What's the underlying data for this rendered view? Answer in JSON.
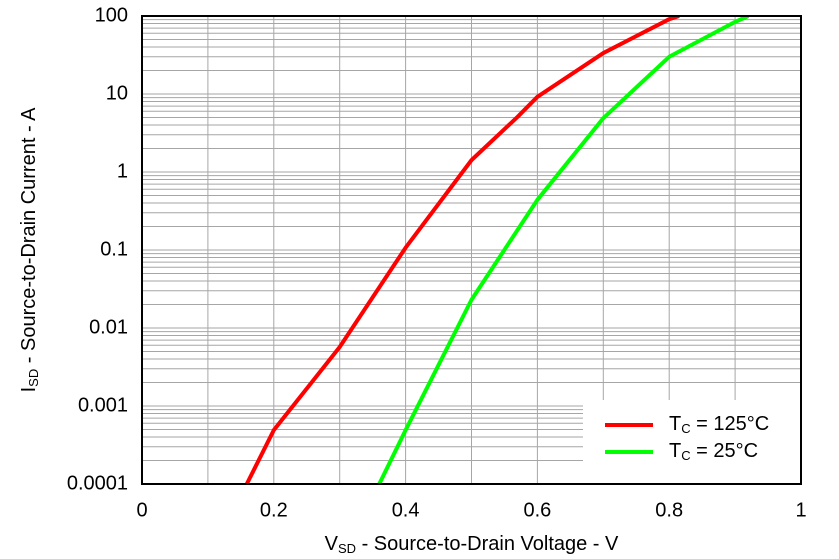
{
  "chart_data": {
    "type": "line",
    "x_label": {
      "text": "V",
      "sub": "SD",
      "rest": " - Source-to-Drain Voltage - V"
    },
    "y_label": {
      "text": "I",
      "sub": "SD",
      "rest": " - Source-to-Drain Current - A"
    },
    "xlim": [
      0,
      1
    ],
    "xticks": [
      0,
      0.2,
      0.4,
      0.6,
      0.8,
      1
    ],
    "ylim": [
      0.0001,
      100
    ],
    "yticks": [
      100,
      10,
      1,
      0.1,
      0.01,
      0.001,
      0.0001
    ],
    "y_scale": "log",
    "grid": true,
    "minor_grid": true,
    "legend": "lower right",
    "series": [
      {
        "name": {
          "text": "T",
          "sub": "C",
          "rest": " = 125°C"
        },
        "color": "#ff0000",
        "x": [
          0.159,
          0.2,
          0.3,
          0.4,
          0.5,
          0.57,
          0.6,
          0.7,
          0.8,
          0.815
        ],
        "values": [
          0.0001,
          0.00049,
          0.0057,
          0.107,
          1.42,
          5.1,
          9.2,
          33.5,
          91,
          100
        ]
      },
      {
        "name": {
          "text": "T",
          "sub": "C",
          "rest": " = 25°C"
        },
        "color": "#00ff00",
        "x": [
          0.36,
          0.4,
          0.5,
          0.6,
          0.7,
          0.8,
          0.9,
          0.92
        ],
        "values": [
          0.0001,
          0.00049,
          0.023,
          0.44,
          4.9,
          30,
          84,
          100
        ]
      }
    ]
  }
}
